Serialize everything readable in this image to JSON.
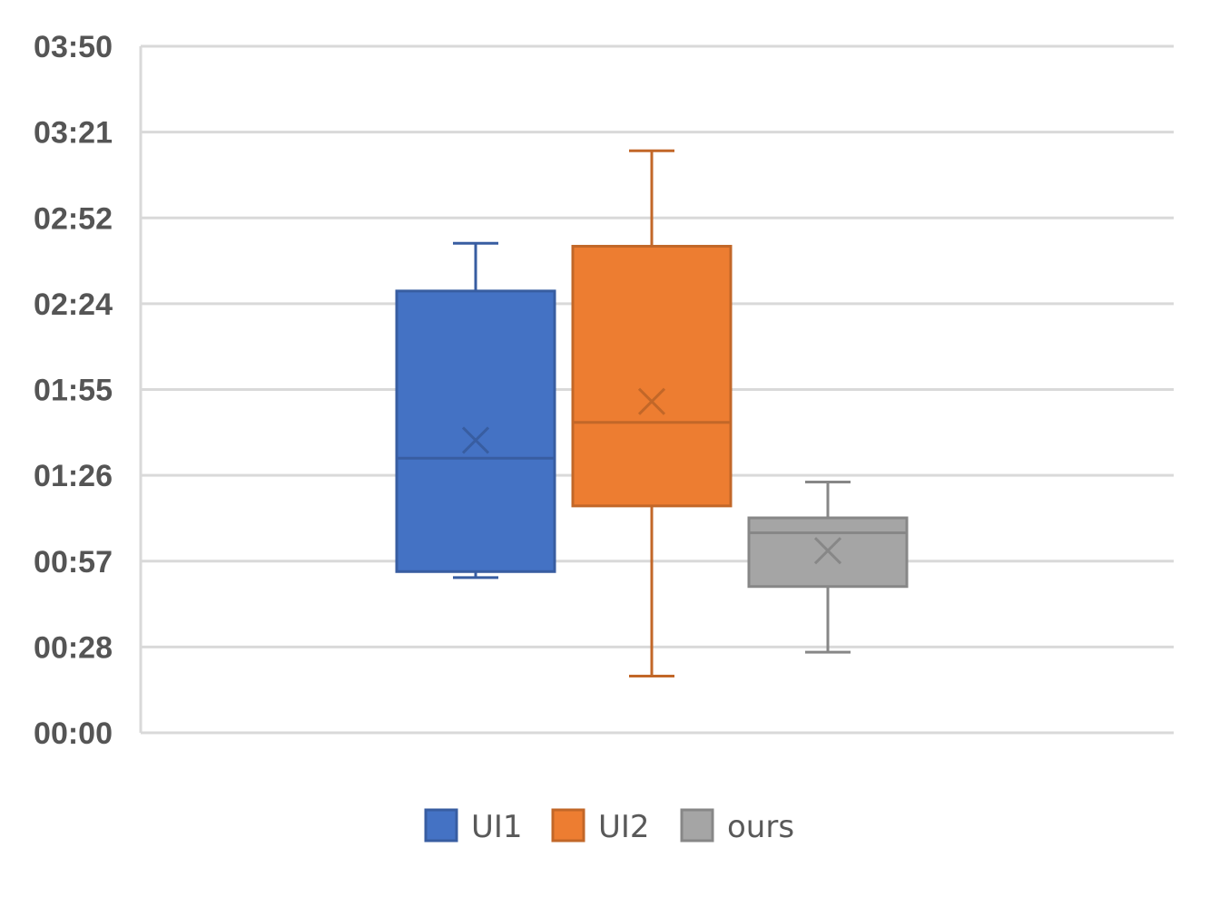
{
  "chart_data": {
    "type": "box",
    "title": "",
    "xlabel": "",
    "ylabel": "",
    "y_unit": "mm:ss",
    "y_ticks": [
      "00:00",
      "00:28",
      "00:57",
      "01:26",
      "01:55",
      "02:24",
      "02:52",
      "03:21",
      "03:50"
    ],
    "ylim": [
      "00:00",
      "03:50"
    ],
    "grid": true,
    "legend_position": "bottom",
    "series": [
      {
        "name": "UI1",
        "color": "#4472C4",
        "min": "00:52",
        "q1": "00:54",
        "median": "01:32",
        "q3": "02:28",
        "max": "02:44",
        "mean": "01:38"
      },
      {
        "name": "UI2",
        "color": "#ED7D31",
        "min": "00:19",
        "q1": "01:16",
        "median": "01:44",
        "q3": "02:43",
        "max": "03:15",
        "mean": "01:51"
      },
      {
        "name": "ours",
        "color": "#A5A5A5",
        "min": "00:27",
        "q1": "00:49",
        "median": "01:07",
        "q3": "01:12",
        "max": "01:24",
        "mean": "01:01"
      }
    ]
  }
}
